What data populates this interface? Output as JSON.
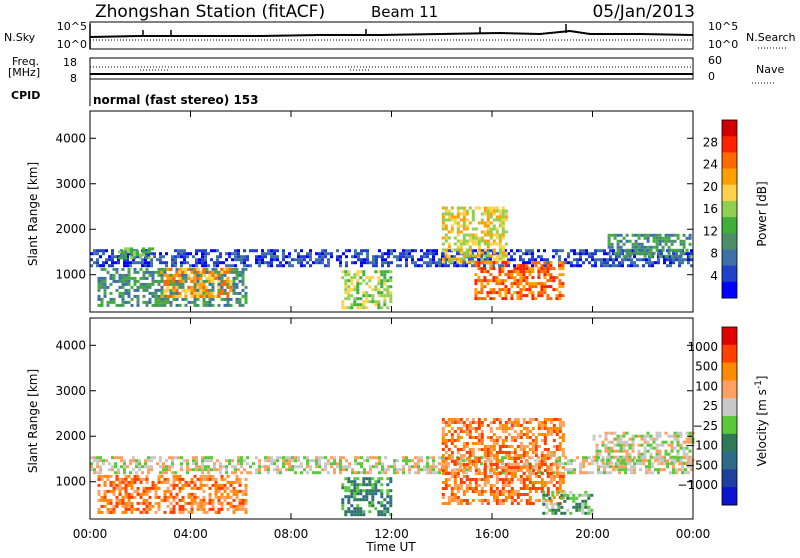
{
  "header": {
    "station": "Zhongshan Station (fitACF)",
    "beam": "Beam 11",
    "date": "05/Jan/2013"
  },
  "nsky_panel": {
    "left_label": "N.Sky",
    "left_ticks": [
      "10^5",
      "10^0"
    ],
    "right_ticks": [
      "10^5",
      "10^0"
    ],
    "right_label": "N.Search"
  },
  "freq_panel": {
    "left_label_1": "Freq.",
    "left_label_2": "[MHz]",
    "left_ticks": [
      "18",
      "8"
    ],
    "right_ticks": [
      "60",
      "0"
    ],
    "right_label": "Nave",
    "cpid_label": "CPID",
    "mode_text": "normal (fast stereo) 153"
  },
  "chart_data": [
    {
      "type": "heatmap",
      "title": "",
      "xlabel": "Time UT",
      "ylabel": "Slant Range [km]",
      "xticks": [
        "00:00",
        "04:00",
        "08:00",
        "12:00",
        "16:00",
        "20:00",
        "00:00"
      ],
      "xlim_hours": [
        0,
        24
      ],
      "ylim": [
        180,
        4600
      ],
      "yticks": [
        1000,
        2000,
        3000,
        4000
      ],
      "colorbar": {
        "label": "Power [dB]",
        "ticks": [
          "4",
          "8",
          "12",
          "16",
          "20",
          "24",
          "28"
        ],
        "colors": [
          "#0000ff",
          "#1f40c8",
          "#3e6fa6",
          "#4e8f6b",
          "#3faf3a",
          "#8fd050",
          "#ffd24a",
          "#ffa000",
          "#ff6a00",
          "#ff2200",
          "#d00000"
        ]
      },
      "regions": [
        {
          "t0": 0.0,
          "t1": 24.0,
          "r0": 1180,
          "r1": 1560,
          "level": 1
        },
        {
          "t0": 0.3,
          "t1": 6.2,
          "r0": 300,
          "r1": 1150,
          "level": 3
        },
        {
          "t0": 2.8,
          "t1": 5.6,
          "r0": 500,
          "r1": 1150,
          "level": 7
        },
        {
          "t0": 1.0,
          "t1": 2.5,
          "r0": 1350,
          "r1": 1600,
          "level": 4
        },
        {
          "t0": 10.0,
          "t1": 12.0,
          "r0": 300,
          "r1": 1100,
          "level": 5
        },
        {
          "t0": 14.0,
          "t1": 16.6,
          "r0": 1300,
          "r1": 2500,
          "level": 6
        },
        {
          "t0": 15.3,
          "t1": 18.8,
          "r0": 500,
          "r1": 1300,
          "level": 8
        },
        {
          "t0": 20.6,
          "t1": 23.9,
          "r0": 1400,
          "r1": 1900,
          "level": 3
        }
      ]
    },
    {
      "type": "heatmap",
      "title": "",
      "xlabel": "Time UT",
      "ylabel": "Slant Range [km]",
      "xticks": [
        "00:00",
        "04:00",
        "08:00",
        "12:00",
        "16:00",
        "20:00",
        "00:00"
      ],
      "xlim_hours": [
        0,
        24
      ],
      "ylim": [
        180,
        4600
      ],
      "yticks": [
        1000,
        2000,
        3000,
        4000
      ],
      "colorbar": {
        "label": "Velocity [m s^-1]",
        "ticks": [
          "1000",
          "500",
          "100",
          "25",
          "−25",
          "−100",
          "−500",
          "−1000"
        ],
        "colors": [
          "#0a14d0",
          "#1e3fa0",
          "#2f6a8a",
          "#2e7a56",
          "#59c83a",
          "#c8c8c8",
          "#ffa060",
          "#ff8a00",
          "#ff4000",
          "#e00000"
        ]
      },
      "regions": [
        {
          "t0": 0.0,
          "t1": 24.0,
          "r0": 1180,
          "r1": 1560,
          "level": 5
        },
        {
          "t0": 0.3,
          "t1": 6.2,
          "r0": 300,
          "r1": 1150,
          "level": 7
        },
        {
          "t0": 10.0,
          "t1": 12.0,
          "r0": 300,
          "r1": 1100,
          "level": 3
        },
        {
          "t0": 14.0,
          "t1": 18.8,
          "r0": 500,
          "r1": 2400,
          "level": 7
        },
        {
          "t0": 20.0,
          "t1": 24.0,
          "r0": 1400,
          "r1": 2100,
          "level": 5
        },
        {
          "t0": 18.0,
          "t1": 20.0,
          "r0": 300,
          "r1": 800,
          "level": 4
        }
      ]
    }
  ]
}
